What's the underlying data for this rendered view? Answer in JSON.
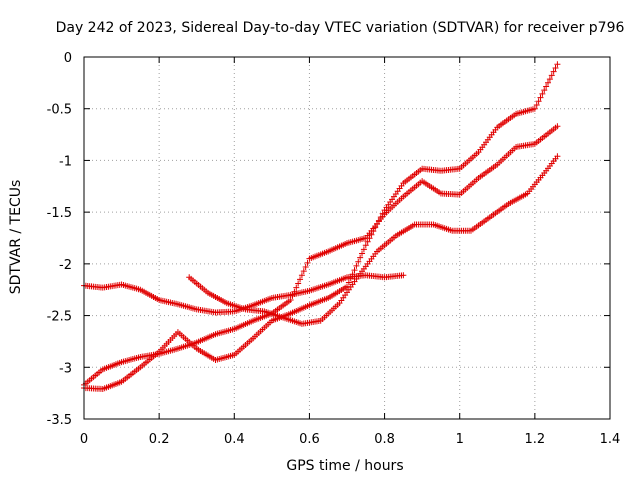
{
  "chart_data": {
    "type": "scatter",
    "title": "Day 242 of 2023, Sidereal Day-to-day VTEC variation (SDTVAR) for receiver p796",
    "xlabel": "GPS time / hours",
    "ylabel": "SDTVAR / TECUs",
    "xlim": [
      0,
      1.4
    ],
    "ylim": [
      -3.5,
      0
    ],
    "xticks": [
      0,
      0.2,
      0.4,
      0.6,
      0.8,
      1,
      1.2,
      1.4
    ],
    "xtick_labels": [
      "0",
      "0.2",
      "0.4",
      "0.6",
      "0.8",
      "1",
      "1.2",
      "1.4"
    ],
    "yticks": [
      0,
      -0.5,
      -1,
      -1.5,
      -2,
      -2.5,
      -3,
      -3.5
    ],
    "ytick_labels": [
      "0",
      "-0.5",
      "-1",
      "-1.5",
      "-2",
      "-2.5",
      "-3",
      "-3.5"
    ],
    "grid": true,
    "marker": "+",
    "color": "#e00000",
    "series": [
      {
        "name": "series-1",
        "x": [
          0.0,
          0.05,
          0.1,
          0.15,
          0.2,
          0.25,
          0.3,
          0.35,
          0.4,
          0.45,
          0.5,
          0.55,
          0.6,
          0.65,
          0.7,
          0.75,
          0.8,
          0.85
        ],
        "y": [
          -2.21,
          -2.23,
          -2.2,
          -2.25,
          -2.35,
          -2.39,
          -2.44,
          -2.47,
          -2.46,
          -2.4,
          -2.33,
          -2.3,
          -2.26,
          -2.2,
          -2.13,
          -2.11,
          -2.13,
          -2.11
        ]
      },
      {
        "name": "series-2",
        "x": [
          0.0,
          0.05,
          0.1,
          0.15,
          0.2,
          0.25,
          0.3,
          0.35,
          0.4,
          0.45,
          0.5,
          0.55,
          0.6,
          0.65,
          0.7,
          0.75,
          0.8,
          0.85,
          0.9,
          0.95,
          1.0,
          1.05,
          1.1,
          1.15,
          1.2,
          1.26
        ],
        "y": [
          -3.2,
          -3.21,
          -3.14,
          -3.0,
          -2.85,
          -2.66,
          -2.82,
          -2.93,
          -2.88,
          -2.72,
          -2.55,
          -2.48,
          -2.4,
          -2.33,
          -2.22,
          -1.82,
          -1.48,
          -1.22,
          -1.08,
          -1.1,
          -1.08,
          -0.92,
          -0.68,
          -0.55,
          -0.5,
          -0.07
        ]
      },
      {
        "name": "series-3",
        "x": [
          0.0,
          0.05,
          0.1,
          0.15,
          0.2,
          0.25,
          0.3,
          0.35,
          0.4,
          0.45,
          0.5,
          0.55,
          0.6,
          0.65,
          0.7,
          0.75,
          0.8,
          0.85,
          0.9,
          0.95,
          1.0,
          1.05,
          1.1,
          1.15,
          1.2,
          1.26
        ],
        "y": [
          -3.17,
          -3.02,
          -2.95,
          -2.9,
          -2.87,
          -2.82,
          -2.76,
          -2.68,
          -2.63,
          -2.55,
          -2.48,
          -2.35,
          -1.95,
          -1.88,
          -1.8,
          -1.75,
          -1.52,
          -1.35,
          -1.2,
          -1.32,
          -1.33,
          -1.17,
          -1.04,
          -0.87,
          -0.84,
          -0.67
        ]
      },
      {
        "name": "series-4",
        "x": [
          0.28,
          0.33,
          0.38,
          0.43,
          0.48,
          0.53,
          0.58,
          0.63,
          0.68,
          0.73,
          0.78,
          0.83,
          0.88,
          0.93,
          0.98,
          1.03,
          1.08,
          1.13,
          1.18,
          1.23,
          1.26
        ],
        "y": [
          -2.13,
          -2.28,
          -2.38,
          -2.44,
          -2.46,
          -2.52,
          -2.58,
          -2.55,
          -2.38,
          -2.12,
          -1.88,
          -1.73,
          -1.62,
          -1.62,
          -1.68,
          -1.68,
          -1.55,
          -1.42,
          -1.32,
          -1.1,
          -0.96
        ]
      }
    ]
  }
}
